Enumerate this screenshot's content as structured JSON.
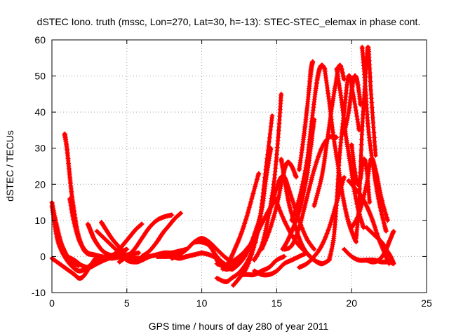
{
  "chart_data": {
    "type": "scatter",
    "title": "dSTEC Iono. truth (mssc, Lon=270, Lat=30, h=-13): STEC-STEC_elemax in phase cont.",
    "xlabel": "GPS time / hours of day 280 of year 2011",
    "ylabel": "dSTEC  / TECUs",
    "xlim": [
      0,
      25
    ],
    "ylim": [
      -10,
      60
    ],
    "xticks": [
      0,
      5,
      10,
      15,
      20,
      25
    ],
    "yticks": [
      -10,
      0,
      10,
      20,
      30,
      40,
      50,
      60
    ],
    "grid": true,
    "marker": "+",
    "color": "#ff0000",
    "series": [
      {
        "x": [
          0.0,
          0.3,
          0.6,
          0.9,
          1.2,
          1.5,
          1.8
        ],
        "y": [
          15,
          9,
          4,
          1,
          -1,
          -2,
          -2.5
        ]
      },
      {
        "x": [
          0.0,
          0.3,
          0.6,
          1.0,
          1.4,
          1.8,
          2.2,
          2.7,
          3.2,
          3.8,
          4.4,
          5.0
        ],
        "y": [
          14,
          6,
          2,
          -1,
          -3,
          -4,
          -3.5,
          -2,
          -1,
          0,
          1,
          2
        ]
      },
      {
        "x": [
          0.0,
          0.5,
          1.0,
          1.5,
          1.8,
          2.1,
          2.5,
          2.9
        ],
        "y": [
          -0.5,
          -2,
          -3.5,
          -5,
          -6,
          -5.5,
          -3,
          -0.5
        ]
      },
      {
        "x": [
          0.85,
          1.0,
          1.15,
          1.3,
          1.5,
          1.7,
          2.0,
          2.3,
          2.7
        ],
        "y": [
          34,
          30,
          24,
          18,
          12,
          7,
          3,
          1,
          0.5
        ]
      },
      {
        "x": [
          1.2,
          1.4,
          1.7,
          2.0,
          2.4,
          2.8,
          3.3,
          4.0,
          4.8
        ],
        "y": [
          16,
          11,
          6,
          3,
          1,
          0.5,
          0,
          -0.5,
          0
        ]
      },
      {
        "x": [
          1.0,
          1.5,
          2.0,
          2.5,
          3.0,
          3.5,
          4.2,
          5.0,
          5.8
        ],
        "y": [
          0,
          -1,
          -2.5,
          -3,
          -2,
          -1,
          0,
          0.5,
          1
        ]
      },
      {
        "x": [
          2.4,
          2.6,
          2.8,
          3.1,
          3.4,
          3.8,
          4.3,
          4.9,
          5.5
        ],
        "y": [
          9,
          7,
          5,
          3,
          1.5,
          0.5,
          0,
          0,
          0.5
        ]
      },
      {
        "x": [
          3.3,
          3.6,
          4.0,
          4.4,
          4.8,
          5.2,
          5.6,
          6.0
        ],
        "y": [
          9.5,
          7.5,
          5,
          3,
          1,
          -0.5,
          -1.5,
          -1
        ]
      },
      {
        "x": [
          3.0,
          3.5,
          4.0,
          4.5,
          5.0,
          5.5,
          6.0,
          6.5
        ],
        "y": [
          7,
          5,
          3,
          1,
          -1,
          -1.5,
          -1,
          0
        ]
      },
      {
        "x": [
          4.5,
          5.0,
          5.5,
          6.0,
          6.5,
          7.0,
          7.5,
          8.0
        ],
        "y": [
          -1.5,
          0,
          2,
          5,
          8,
          10,
          11,
          11.5
        ]
      },
      {
        "x": [
          4.0,
          4.4,
          4.8,
          5.2,
          5.6,
          6.0
        ],
        "y": [
          0,
          1.5,
          3.5,
          5.5,
          7.5,
          9
        ]
      },
      {
        "x": [
          5.0,
          5.5,
          6.0,
          6.5,
          7.0,
          7.5,
          8.0,
          8.5,
          9.0
        ],
        "y": [
          0,
          -0.5,
          -0.5,
          0,
          0.5,
          1,
          1,
          1.5,
          2
        ]
      },
      {
        "x": [
          6.0,
          6.5,
          7.0,
          7.4,
          7.8,
          8.2,
          8.6
        ],
        "y": [
          0,
          1.5,
          4,
          6.5,
          8.5,
          10.5,
          12
        ]
      },
      {
        "x": [
          7.0,
          7.5,
          8.0,
          8.5,
          9.0,
          9.5,
          10.0
        ],
        "y": [
          0,
          0,
          0,
          -0.5,
          0,
          0.5,
          1
        ]
      },
      {
        "x": [
          8.0,
          8.5,
          9.0,
          9.5,
          10.0,
          10.5,
          11.0,
          11.5,
          11.8
        ],
        "y": [
          -0.5,
          0.5,
          2,
          4,
          5,
          4,
          2,
          0,
          -1
        ]
      },
      {
        "x": [
          9.5,
          10.0,
          10.5,
          11.0,
          11.5,
          12.0
        ],
        "y": [
          4,
          4,
          3,
          0,
          -2,
          -3
        ]
      },
      {
        "x": [
          10.0,
          10.5,
          11.0,
          11.5,
          12.0,
          12.5
        ],
        "y": [
          1,
          0.5,
          -0.5,
          -2,
          -3.5,
          -2
        ]
      },
      {
        "x": [
          11.0,
          11.3,
          11.6,
          12.0,
          12.4,
          12.8,
          13.2,
          13.6
        ],
        "y": [
          -1,
          -2.5,
          -3.5,
          -3,
          -1,
          1,
          3,
          4
        ]
      },
      {
        "x": [
          11.0,
          11.5,
          12.0,
          12.5,
          13.0,
          13.5,
          14.0,
          14.5,
          15.0
        ],
        "y": [
          -2,
          -2.5,
          -1.5,
          0,
          2,
          5,
          9,
          13,
          16
        ]
      },
      {
        "x": [
          11.4,
          11.8,
          12.2,
          12.6,
          13.0,
          13.4,
          13.8
        ],
        "y": [
          -3.5,
          -1.5,
          2,
          6,
          11,
          17,
          23
        ]
      },
      {
        "x": [
          12.0,
          12.5,
          13.0,
          13.5,
          14.0,
          14.3,
          14.6
        ],
        "y": [
          -3.5,
          -2,
          1,
          6,
          13,
          22,
          30
        ]
      },
      {
        "x": [
          11.0,
          11.6,
          12.0,
          12.6,
          13.2,
          13.8,
          14.2,
          14.6
        ],
        "y": [
          -6,
          -7,
          -6,
          -4,
          0,
          8,
          20,
          30
        ]
      },
      {
        "x": [
          12.1,
          12.5,
          13.0,
          13.5,
          13.9,
          14.3,
          14.7
        ],
        "y": [
          -8,
          -6,
          -3,
          3,
          11,
          25,
          39
        ]
      },
      {
        "x": [
          12.5,
          13.0,
          13.5,
          14.0,
          14.5,
          15.0,
          15.5
        ],
        "y": [
          -5,
          -5,
          -5,
          -4,
          -3,
          -1,
          0
        ]
      },
      {
        "x": [
          13.5,
          14.0,
          14.5,
          15.0,
          15.5,
          16.0,
          16.5,
          17.0
        ],
        "y": [
          -4,
          -5,
          -5,
          -4,
          -2,
          -1,
          0,
          1
        ]
      },
      {
        "x": [
          13.5,
          14.0,
          14.4,
          14.8,
          15.1,
          15.3
        ],
        "y": [
          -1,
          3,
          10,
          20,
          33,
          45
        ]
      },
      {
        "x": [
          14.0,
          14.5,
          15.0,
          15.4,
          15.7,
          16.0,
          16.3
        ],
        "y": [
          2,
          7,
          14,
          22,
          26,
          25,
          22
        ]
      },
      {
        "x": [
          14.5,
          15.0,
          15.3,
          15.5,
          15.7,
          16.1,
          16.5,
          17.0,
          17.5
        ],
        "y": [
          12,
          19,
          22,
          22,
          20,
          15,
          10,
          5,
          2
        ]
      },
      {
        "x": [
          15.3,
          15.5,
          15.8,
          16.2,
          16.6,
          17.0,
          17.5,
          18.0
        ],
        "y": [
          27,
          22,
          15,
          9,
          4,
          1,
          -1,
          -2
        ]
      },
      {
        "x": [
          15.0,
          15.5,
          16.0,
          16.5,
          17.0,
          17.5,
          18.0,
          18.5
        ],
        "y": [
          15,
          10,
          6,
          3,
          1,
          -1,
          -2,
          -1
        ]
      },
      {
        "x": [
          15.5,
          16.0,
          16.5,
          17.0,
          17.5,
          18.0,
          18.5,
          19.0
        ],
        "y": [
          2,
          3,
          8,
          16,
          24,
          30,
          33,
          33
        ]
      },
      {
        "x": [
          16.0,
          16.5,
          17.0,
          17.3,
          17.6,
          17.8,
          18.0,
          18.2
        ],
        "y": [
          10,
          16,
          26,
          36,
          46,
          51,
          53,
          52
        ]
      },
      {
        "x": [
          16.5,
          16.8,
          17.0,
          17.2,
          17.3,
          17.4
        ],
        "y": [
          24,
          33,
          40,
          48,
          52,
          54
        ]
      },
      {
        "x": [
          16.5,
          17.0,
          17.5,
          18.0,
          18.5,
          19.0,
          19.5
        ],
        "y": [
          -3,
          -2,
          0,
          3,
          8,
          15,
          22
        ]
      },
      {
        "x": [
          17.5,
          17.3,
          17.0,
          16.6,
          16.2,
          15.8,
          15.4
        ],
        "y": [
          38,
          31,
          22,
          14,
          9,
          5,
          2
        ]
      },
      {
        "x": [
          18.2,
          18.5,
          18.8,
          19.1,
          19.4,
          19.7,
          20.0,
          20.3
        ],
        "y": [
          52,
          43,
          33,
          25,
          17,
          11,
          7,
          4
        ]
      },
      {
        "x": [
          17.5,
          18.0,
          18.3,
          18.6,
          18.9,
          19.2,
          19.5
        ],
        "y": [
          14,
          22,
          30,
          39,
          47,
          53,
          49
        ]
      },
      {
        "x": [
          18.5,
          18.8,
          19.0,
          19.2,
          19.5,
          19.8,
          20.1,
          20.5
        ],
        "y": [
          -1,
          5,
          15,
          28,
          40,
          50,
          45,
          35
        ]
      },
      {
        "x": [
          19.0,
          19.3,
          19.6,
          19.9,
          20.2,
          20.5,
          20.8
        ],
        "y": [
          52,
          44,
          34,
          26,
          18,
          12,
          8
        ]
      },
      {
        "x": [
          19.5,
          19.8,
          20.0,
          20.2,
          20.4,
          20.6
        ],
        "y": [
          34,
          40,
          46,
          50,
          48,
          42
        ]
      },
      {
        "x": [
          20.0,
          20.2,
          20.4,
          20.6,
          20.8,
          21.0,
          21.2
        ],
        "y": [
          31,
          24,
          20,
          22,
          27,
          24,
          15
        ]
      },
      {
        "x": [
          20.3,
          20.5,
          20.7,
          20.9,
          21.1,
          21.3,
          21.6
        ],
        "y": [
          5,
          15,
          35,
          48,
          58,
          45,
          28
        ]
      },
      {
        "x": [
          20.7,
          20.9,
          21.1,
          21.4,
          21.7,
          22.0,
          22.3
        ],
        "y": [
          58,
          48,
          36,
          26,
          18,
          12,
          7
        ]
      },
      {
        "x": [
          19.8,
          20.2,
          20.6,
          21.0,
          21.4,
          21.8,
          22.2,
          22.5
        ],
        "y": [
          21,
          19,
          17,
          14,
          10,
          5,
          1,
          -2
        ]
      },
      {
        "x": [
          20.0,
          20.5,
          21.0,
          21.3,
          21.6,
          22.0,
          22.4
        ],
        "y": [
          8,
          12,
          20,
          27,
          24,
          16,
          10
        ]
      },
      {
        "x": [
          21.0,
          21.5,
          22.0,
          22.3,
          22.6,
          22.8
        ],
        "y": [
          8,
          6,
          4,
          2,
          0,
          -2
        ]
      },
      {
        "x": [
          21.0,
          21.4,
          21.8,
          22.2,
          22.5,
          22.8
        ],
        "y": [
          -1,
          -1.5,
          -1,
          1,
          4,
          7
        ]
      },
      {
        "x": [
          19.5,
          20.0,
          20.5,
          21.0,
          21.5,
          22.0,
          22.5,
          22.8
        ],
        "y": [
          2,
          0,
          -1,
          -1,
          -1,
          -1.5,
          -1.5,
          -2
        ]
      }
    ]
  }
}
